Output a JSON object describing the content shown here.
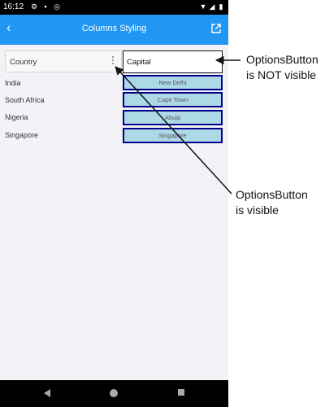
{
  "status_bar": {
    "time": "16:12"
  },
  "app_bar": {
    "title": "Columns Styling"
  },
  "grid": {
    "headers": {
      "country": "Country",
      "capital": "Capital"
    },
    "rows": [
      {
        "country": "India",
        "capital": "New Delhi"
      },
      {
        "country": "South Africa",
        "capital": "Cape Town"
      },
      {
        "country": "Nigeria",
        "capital": "Abuja"
      },
      {
        "country": "Singapore",
        "capital": "Singapore"
      }
    ]
  },
  "annotations": {
    "not_visible": {
      "line1": "OptionsButton",
      "line2": "is NOT visible"
    },
    "visible": {
      "line1": "OptionsButton",
      "line2": "is visible"
    }
  },
  "colors": {
    "app_bar": "#2196f3",
    "capital_cell_fill": "#add8e6",
    "capital_cell_border": "#00008b"
  }
}
